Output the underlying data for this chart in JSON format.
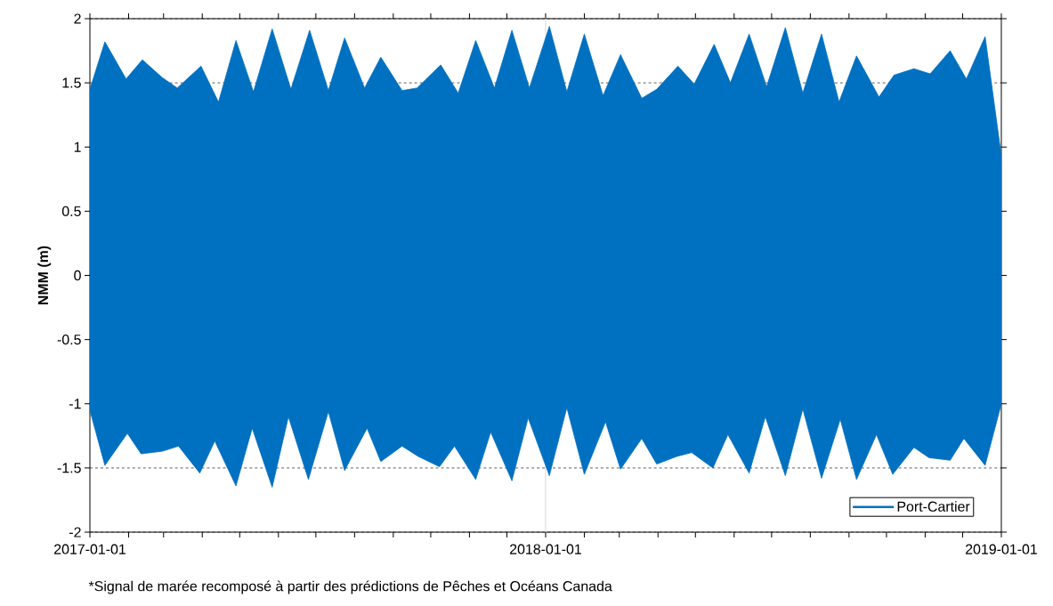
{
  "chart_data": {
    "type": "area",
    "ylabel": "NMM (m)",
    "annotations": [
      "*Signal de marée recomposé à partir des prédictions de Pêches et Océans Canada"
    ],
    "xlim": [
      "2017-01-01",
      "2019-01-01"
    ],
    "xticks": [
      {
        "value": "2017-01-01",
        "label": "2017-01-01"
      },
      {
        "value": "2017-02-01",
        "label": null
      },
      {
        "value": "2017-03-01",
        "label": null
      },
      {
        "value": "2017-04-01",
        "label": null
      },
      {
        "value": "2017-05-01",
        "label": null
      },
      {
        "value": "2017-06-01",
        "label": null
      },
      {
        "value": "2017-07-01",
        "label": null
      },
      {
        "value": "2017-08-01",
        "label": null
      },
      {
        "value": "2017-09-01",
        "label": null
      },
      {
        "value": "2017-10-01",
        "label": null
      },
      {
        "value": "2017-11-01",
        "label": null
      },
      {
        "value": "2017-12-01",
        "label": null
      },
      {
        "value": "2018-01-01",
        "label": "2018-01-01"
      },
      {
        "value": "2018-02-01",
        "label": null
      },
      {
        "value": "2018-03-01",
        "label": null
      },
      {
        "value": "2018-04-01",
        "label": null
      },
      {
        "value": "2018-05-01",
        "label": null
      },
      {
        "value": "2018-06-01",
        "label": null
      },
      {
        "value": "2018-07-01",
        "label": null
      },
      {
        "value": "2018-08-01",
        "label": null
      },
      {
        "value": "2018-09-01",
        "label": null
      },
      {
        "value": "2018-10-01",
        "label": null
      },
      {
        "value": "2018-11-01",
        "label": null
      },
      {
        "value": "2018-12-01",
        "label": null
      },
      {
        "value": "2019-01-01",
        "label": "2019-01-01"
      }
    ],
    "ylim": [
      -2,
      2
    ],
    "yticks": [
      -2,
      -1.5,
      -1,
      -0.5,
      0,
      0.5,
      1,
      1.5,
      2
    ],
    "grid": "y",
    "legend": "bottom right",
    "ref_lines": [
      {
        "axis": "x",
        "value": "2018-01-01",
        "label": null,
        "color": "#d9d9d9"
      }
    ],
    "series": [
      {
        "name": "Port-Cartier",
        "color": "#0070c0",
        "x": [
          "2017-01-01",
          "2017-01-13",
          "2017-01-30",
          "2017-02-12",
          "2017-02-28",
          "2017-03-12",
          "2017-03-31",
          "2017-04-14",
          "2017-04-28",
          "2017-05-12",
          "2017-05-27",
          "2017-06-11",
          "2017-06-26",
          "2017-07-11",
          "2017-07-24",
          "2017-08-09",
          "2017-08-22",
          "2017-09-08",
          "2017-09-20",
          "2017-10-09",
          "2017-10-23",
          "2017-11-06",
          "2017-11-21",
          "2017-12-05",
          "2017-12-19",
          "2018-01-04",
          "2018-01-18",
          "2018-02-01",
          "2018-02-16",
          "2018-03-02",
          "2018-03-19",
          "2018-03-31",
          "2018-04-17",
          "2018-04-30",
          "2018-05-16",
          "2018-05-29",
          "2018-06-13",
          "2018-06-27",
          "2018-07-12",
          "2018-07-26",
          "2018-08-10",
          "2018-08-24",
          "2018-09-07",
          "2018-09-25",
          "2018-10-07",
          "2018-10-23",
          "2018-11-05",
          "2018-11-21",
          "2018-12-04",
          "2018-12-19",
          "2019-01-01"
        ],
        "values": [
          1.45,
          1.82,
          1.53,
          1.68,
          1.54,
          1.46,
          1.63,
          1.35,
          1.83,
          1.43,
          1.92,
          1.45,
          1.91,
          1.44,
          1.85,
          1.46,
          1.7,
          1.44,
          1.46,
          1.64,
          1.42,
          1.83,
          1.46,
          1.91,
          1.46,
          1.94,
          1.43,
          1.88,
          1.4,
          1.72,
          1.38,
          1.45,
          1.63,
          1.49,
          1.8,
          1.5,
          1.88,
          1.47,
          1.93,
          1.42,
          1.88,
          1.35,
          1.71,
          1.39,
          1.56,
          1.61,
          1.57,
          1.75,
          1.53,
          1.86,
          0.93
        ]
      },
      {
        "color": "#0070c0",
        "x": [
          "2017-01-01",
          "2017-01-13",
          "2017-01-31",
          "2017-02-11",
          "2017-02-28",
          "2017-03-13",
          "2017-03-30",
          "2017-04-11",
          "2017-04-28",
          "2017-05-11",
          "2017-05-27",
          "2017-06-09",
          "2017-06-25",
          "2017-07-11",
          "2017-07-24",
          "2017-08-11",
          "2017-08-22",
          "2017-09-08",
          "2017-09-21",
          "2017-10-08",
          "2017-10-20",
          "2017-11-06",
          "2017-11-18",
          "2017-12-05",
          "2017-12-18",
          "2018-01-04",
          "2018-01-18",
          "2018-02-01",
          "2018-02-18",
          "2018-03-02",
          "2018-03-19",
          "2018-03-31",
          "2018-04-16",
          "2018-04-28",
          "2018-05-15",
          "2018-05-27",
          "2018-06-13",
          "2018-06-26",
          "2018-07-12",
          "2018-07-26",
          "2018-08-10",
          "2018-08-25",
          "2018-09-07",
          "2018-09-23",
          "2018-10-06",
          "2018-10-23",
          "2018-11-04",
          "2018-11-21",
          "2018-12-02",
          "2018-12-19",
          "2019-01-01"
        ],
        "values": [
          -1.05,
          -1.48,
          -1.23,
          -1.39,
          -1.37,
          -1.33,
          -1.54,
          -1.29,
          -1.64,
          -1.19,
          -1.65,
          -1.1,
          -1.59,
          -1.06,
          -1.52,
          -1.19,
          -1.45,
          -1.33,
          -1.41,
          -1.49,
          -1.33,
          -1.59,
          -1.22,
          -1.6,
          -1.11,
          -1.56,
          -1.03,
          -1.55,
          -1.14,
          -1.51,
          -1.27,
          -1.47,
          -1.41,
          -1.38,
          -1.5,
          -1.24,
          -1.54,
          -1.1,
          -1.56,
          -1.04,
          -1.58,
          -1.12,
          -1.59,
          -1.24,
          -1.55,
          -1.34,
          -1.42,
          -1.44,
          -1.27,
          -1.48,
          -1.0
        ]
      }
    ]
  }
}
